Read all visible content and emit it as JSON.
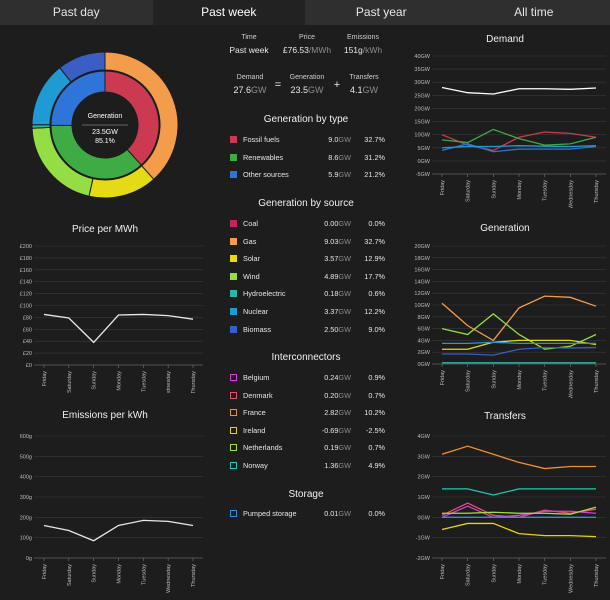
{
  "tabs": [
    "Past day",
    "Past week",
    "Past year",
    "All time"
  ],
  "active_tab": 1,
  "donut": {
    "label": "Generation",
    "value": "23.5GW",
    "percent": "85.1%",
    "inner": [
      {
        "name": "Fossil fuels",
        "value": 9.0,
        "color": "#cc3a52"
      },
      {
        "name": "Renewables",
        "value": 8.6,
        "color": "#3fab45"
      },
      {
        "name": "Other sources",
        "value": 5.9,
        "color": "#2f74d8"
      }
    ],
    "outer": [
      {
        "name": "Coal",
        "value": 0.0,
        "color": "#c2255f"
      },
      {
        "name": "Gas",
        "value": 9.03,
        "color": "#f39c4c"
      },
      {
        "name": "Solar",
        "value": 3.57,
        "color": "#e4da15"
      },
      {
        "name": "Wind",
        "value": 4.89,
        "color": "#95dd45"
      },
      {
        "name": "Hydroelectric",
        "value": 0.18,
        "color": "#2bb6a6"
      },
      {
        "name": "Nuclear",
        "value": 3.37,
        "color": "#1f9ad3"
      },
      {
        "name": "Biomass",
        "value": 2.5,
        "color": "#3a5ec3"
      }
    ]
  },
  "summary": {
    "time_label": "Time",
    "time_value": "Past week",
    "price_label": "Price",
    "price_value": "£76.53",
    "price_unit": "/MWh",
    "emissions_label": "Emissions",
    "emissions_value": "151g",
    "emissions_unit": "/kWh",
    "demand_label": "Demand",
    "demand_value": "27.6",
    "demand_unit": "GW",
    "generation_label": "Generation",
    "generation_value": "23.5",
    "generation_unit": "GW",
    "transfers_label": "Transfers",
    "transfers_value": "4.1",
    "transfers_unit": "GW",
    "eq": "=",
    "plus": "+"
  },
  "gen_by_type": {
    "title": "Generation by type",
    "rows": [
      {
        "label": "Fossil fuels",
        "val": "9.0",
        "unit": "GW",
        "pct": "32.7%",
        "color": "#cc3a52"
      },
      {
        "label": "Renewables",
        "val": "8.6",
        "unit": "GW",
        "pct": "31.2%",
        "color": "#3fab45"
      },
      {
        "label": "Other sources",
        "val": "5.9",
        "unit": "GW",
        "pct": "21.2%",
        "color": "#2f74d8"
      }
    ]
  },
  "gen_by_source": {
    "title": "Generation by source",
    "rows": [
      {
        "label": "Coal",
        "val": "0.00",
        "unit": "GW",
        "pct": "0.0%",
        "color": "#c2255f"
      },
      {
        "label": "Gas",
        "val": "9.03",
        "unit": "GW",
        "pct": "32.7%",
        "color": "#f39c4c"
      },
      {
        "label": "Solar",
        "val": "3.57",
        "unit": "GW",
        "pct": "12.9%",
        "color": "#e4da15"
      },
      {
        "label": "Wind",
        "val": "4.89",
        "unit": "GW",
        "pct": "17.7%",
        "color": "#95dd45"
      },
      {
        "label": "Hydroelectric",
        "val": "0.18",
        "unit": "GW",
        "pct": "0.6%",
        "color": "#2bb6a6"
      },
      {
        "label": "Nuclear",
        "val": "3.37",
        "unit": "GW",
        "pct": "12.2%",
        "color": "#1f9ad3"
      },
      {
        "label": "Biomass",
        "val": "2.50",
        "unit": "GW",
        "pct": "9.0%",
        "color": "#3a5ec3"
      }
    ]
  },
  "interconnectors": {
    "title": "Interconnectors",
    "rows": [
      {
        "label": "Belgium",
        "val": "0.24",
        "unit": "GW",
        "pct": "0.9%",
        "color": "#d53bd8"
      },
      {
        "label": "Denmark",
        "val": "0.20",
        "unit": "GW",
        "pct": "0.7%",
        "color": "#e2506b"
      },
      {
        "label": "France",
        "val": "2.82",
        "unit": "GW",
        "pct": "10.2%",
        "color": "#f0902f"
      },
      {
        "label": "Ireland",
        "val": "-0.69",
        "unit": "GW",
        "pct": "-2.5%",
        "color": "#e6d21a"
      },
      {
        "label": "Netherlands",
        "val": "0.19",
        "unit": "GW",
        "pct": "0.7%",
        "color": "#a6dc3c"
      },
      {
        "label": "Norway",
        "val": "1.36",
        "unit": "GW",
        "pct": "4.9%",
        "color": "#24c6b4"
      }
    ]
  },
  "storage": {
    "title": "Storage",
    "rows": [
      {
        "label": "Pumped storage",
        "val": "0.01",
        "unit": "GW",
        "pct": "0.0%",
        "color": "#2a8fe0"
      }
    ]
  },
  "chart_data": [
    {
      "name": "price",
      "type": "line",
      "title": "Price per MWh",
      "categories": [
        "Friday",
        "Saturday",
        "Sunday",
        "Monday",
        "Tuesday",
        "Wednesday",
        "Thursday"
      ],
      "yticks": [
        "£0",
        "£20",
        "£40",
        "£60",
        "£80",
        "£100",
        "£120",
        "£140",
        "£160",
        "£180",
        "£200"
      ],
      "ylim": [
        0,
        200
      ],
      "series": [
        {
          "values": [
            85,
            79,
            38,
            84,
            85,
            83,
            77
          ],
          "color": "#e8e8e8"
        }
      ]
    },
    {
      "name": "emissions",
      "type": "line",
      "title": "Emissions per kWh",
      "categories": [
        "Friday",
        "Saturday",
        "Sunday",
        "Monday",
        "Tuesday",
        "Wednesday",
        "Thursday"
      ],
      "yticks": [
        "0g",
        "100g",
        "200g",
        "300g",
        "400g",
        "500g",
        "600g"
      ],
      "ylim": [
        0,
        600
      ],
      "series": [
        {
          "values": [
            160,
            135,
            85,
            160,
            185,
            180,
            160
          ],
          "color": "#e8e8e8"
        }
      ]
    },
    {
      "name": "demand",
      "type": "line",
      "title": "Demand",
      "categories": [
        "Friday",
        "Saturday",
        "Sunday",
        "Monday",
        "Tuesday",
        "Wednesday",
        "Thursday"
      ],
      "yticks": [
        "-5GW",
        "0GW",
        "5GW",
        "10GW",
        "15GW",
        "20GW",
        "25GW",
        "30GW",
        "35GW",
        "40GW"
      ],
      "ylim": [
        -5,
        40
      ],
      "series": [
        {
          "values": [
            28,
            26,
            25.5,
            27.5,
            27.5,
            27.3,
            27.8
          ],
          "color": "#ffffff"
        },
        {
          "values": [
            10,
            6,
            4,
            9,
            11,
            10.5,
            9
          ],
          "color": "#cc3a52"
        },
        {
          "values": [
            8,
            7,
            12,
            8.5,
            6,
            6.5,
            9
          ],
          "color": "#3fab45"
        },
        {
          "values": [
            4,
            6.5,
            3.5,
            4.5,
            4.5,
            4.5,
            5.5
          ],
          "color": "#2f74d8"
        },
        {
          "values": [
            5,
            5.5,
            5.5,
            5.8,
            5.6,
            5.5,
            5.8
          ],
          "color": "#1f9ad3"
        }
      ]
    },
    {
      "name": "generation",
      "type": "line",
      "title": "Generation",
      "categories": [
        "Friday",
        "Saturday",
        "Sunday",
        "Monday",
        "Tuesday",
        "Wednesday",
        "Thursday"
      ],
      "yticks": [
        "0GW",
        "2GW",
        "4GW",
        "6GW",
        "8GW",
        "10GW",
        "12GW",
        "14GW",
        "16GW",
        "18GW",
        "20GW"
      ],
      "ylim": [
        0,
        20
      ],
      "series": [
        {
          "values": [
            10.3,
            6.5,
            4,
            9.5,
            11.5,
            11.3,
            9.8
          ],
          "color": "#f39c4c"
        },
        {
          "values": [
            6,
            5,
            8.5,
            5,
            2.5,
            3,
            5
          ],
          "color": "#95dd45"
        },
        {
          "values": [
            2.5,
            2.5,
            3.7,
            4,
            4,
            4,
            3.3
          ],
          "color": "#e4da15"
        },
        {
          "values": [
            3.5,
            3.5,
            3.7,
            3.5,
            3.5,
            3.5,
            3.5
          ],
          "color": "#1f9ad3"
        },
        {
          "values": [
            1.7,
            1.7,
            1.5,
            2.5,
            2.8,
            2.7,
            2.8
          ],
          "color": "#3a5ec3"
        },
        {
          "values": [
            0.2,
            0.2,
            0.2,
            0.2,
            0.2,
            0.2,
            0.2
          ],
          "color": "#2bb6a6"
        }
      ]
    },
    {
      "name": "transfers",
      "type": "line",
      "title": "Transfers",
      "categories": [
        "Friday",
        "Saturday",
        "Sunday",
        "Monday",
        "Tuesday",
        "Wednesday",
        "Thursday"
      ],
      "yticks": [
        "-2GW",
        "-1GW",
        "0GW",
        "1GW",
        "2GW",
        "3GW",
        "4GW"
      ],
      "ylim": [
        -2,
        4
      ],
      "series": [
        {
          "values": [
            3.1,
            3.5,
            3.1,
            2.7,
            2.4,
            2.5,
            2.5
          ],
          "color": "#f0902f"
        },
        {
          "values": [
            1.4,
            1.4,
            1.1,
            1.4,
            1.4,
            1.4,
            1.4
          ],
          "color": "#24c6b4"
        },
        {
          "values": [
            -0.6,
            -0.3,
            -0.3,
            -0.8,
            -0.9,
            -0.9,
            -0.95
          ],
          "color": "#e6d21a"
        },
        {
          "values": [
            0.1,
            0.7,
            0.1,
            0.0,
            0.35,
            0.2,
            0.4
          ],
          "color": "#e2506b"
        },
        {
          "values": [
            0.0,
            0.55,
            0.0,
            0.1,
            0.3,
            0.3,
            0.2
          ],
          "color": "#d53bd8"
        },
        {
          "values": [
            0.2,
            0.2,
            0.25,
            0.2,
            0.2,
            0.15,
            0.5
          ],
          "color": "#a6dc3c"
        },
        {
          "values": [
            0.0,
            0.0,
            0.0,
            0.0,
            0.0,
            0.0,
            0.0
          ],
          "color": "#2a8fe0"
        }
      ]
    }
  ]
}
